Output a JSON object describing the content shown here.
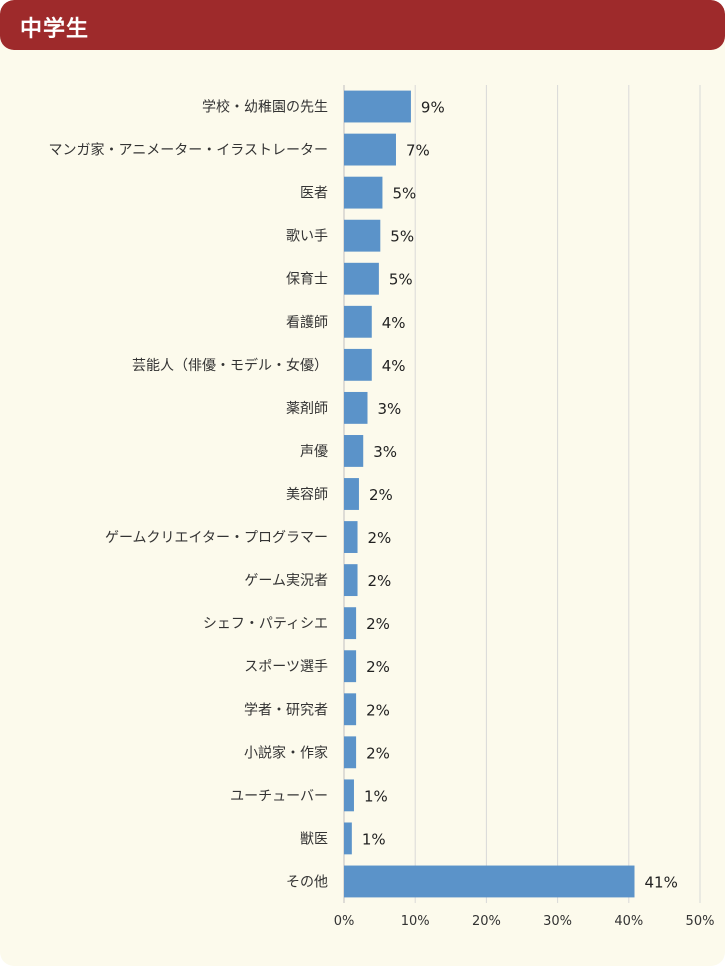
{
  "header": {
    "title": "中学生"
  },
  "colors": {
    "header": "#9e2a2b",
    "background": "#fcfaec",
    "bar": "#5b93c9",
    "grid": "#d9d9d9"
  },
  "chart_data": {
    "type": "bar",
    "orientation": "horizontal",
    "categories": [
      "学校・幼稚園の先生",
      "マンガ家・アニメーター・イラストレーター",
      "医者",
      "歌い手",
      "保育士",
      "看護師",
      "芸能人（俳優・モデル・女優）",
      "薬剤師",
      "声優",
      "美容師",
      "ゲームクリエイター・プログラマー",
      "ゲーム実況者",
      "シェフ・パティシエ",
      "スポーツ選手",
      "学者・研究者",
      "小説家・作家",
      "ユーチューバー",
      "獣医",
      "その他"
    ],
    "values": [
      9.4,
      7.3,
      5.4,
      5.1,
      4.9,
      3.9,
      3.9,
      3.3,
      2.7,
      2.1,
      1.9,
      1.9,
      1.7,
      1.7,
      1.7,
      1.7,
      1.4,
      1.1,
      40.8
    ],
    "data_labels": [
      "9%",
      "7%",
      "5%",
      "5%",
      "5%",
      "4%",
      "4%",
      "3%",
      "3%",
      "2%",
      "2%",
      "2%",
      "2%",
      "2%",
      "2%",
      "2%",
      "1%",
      "1%",
      "41%"
    ],
    "xlim": [
      0,
      50
    ],
    "xticks": [
      0,
      10,
      20,
      30,
      40,
      50
    ],
    "xtick_labels": [
      "0%",
      "10%",
      "20%",
      "30%",
      "40%",
      "50%"
    ],
    "grid": true,
    "legend": "none"
  }
}
